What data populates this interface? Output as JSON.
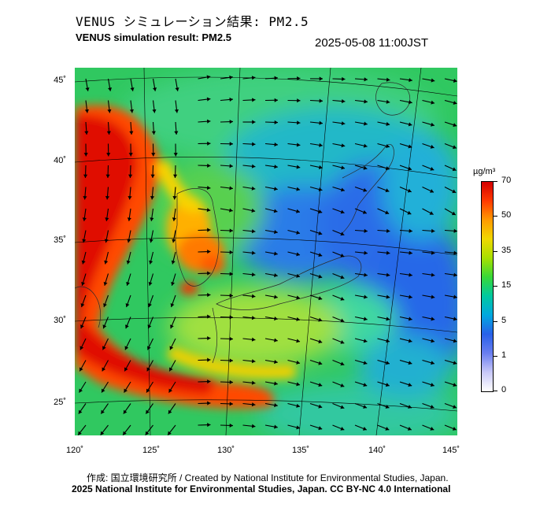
{
  "title_jp": "VENUS シミュレーション結果: PM2.5",
  "title_en": "VENUS simulation result: PM2.5",
  "datetime": "2025-05-08 11:00JST",
  "map": {
    "lon_range": [
      120,
      145
    ],
    "lat_range": [
      23,
      46
    ],
    "lat_labels": [
      "45˚",
      "40˚",
      "35˚",
      "30˚",
      "25˚"
    ],
    "lon_labels": [
      "120˚",
      "125˚",
      "130˚",
      "135˚",
      "140˚",
      "145˚"
    ],
    "field": "PM2.5 concentration with wind vectors"
  },
  "colorbar": {
    "unit": "µg/m³",
    "ticks": [
      "70",
      "50",
      "35",
      "15",
      "5",
      "1",
      "0"
    ],
    "colors": [
      "#d40000",
      "#ff3a00",
      "#ff9a00",
      "#f0d800",
      "#a8e000",
      "#38d838",
      "#00c8a0",
      "#00a8e0",
      "#2860e8",
      "#6a7ef0",
      "#c8c8f8",
      "#ffffff"
    ]
  },
  "credit": {
    "line1": "作成: 国立環境研究所 / Created by National Institute for Environmental Studies, Japan.",
    "line2": "2025 National Institute for Environmental Studies, Japan. CC BY-NC 4.0 International"
  }
}
